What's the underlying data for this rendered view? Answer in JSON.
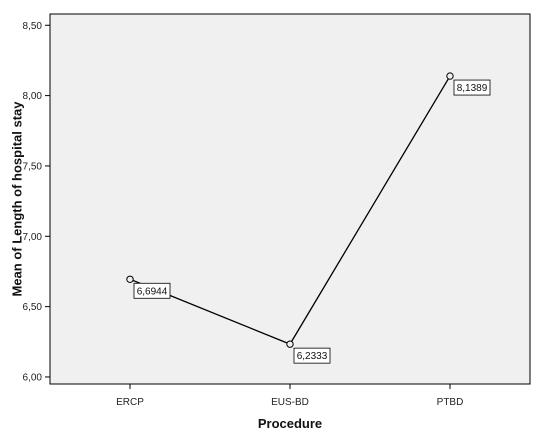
{
  "chart_data": {
    "type": "line",
    "categories": [
      "ERCP",
      "EUS-BD",
      "PTBD"
    ],
    "values": [
      6.6944,
      6.2333,
      8.1389
    ],
    "data_labels": [
      "6,6944",
      "6,2333",
      "8,1389"
    ],
    "xlabel": "Procedure",
    "ylabel": "Mean of Length of  hospital stay",
    "ylim": [
      5.95,
      8.58
    ],
    "yticks": [
      6.0,
      6.5,
      7.0,
      7.5,
      8.0,
      8.5
    ],
    "ytick_labels": [
      "6,00",
      "6,50",
      "7,00",
      "7,50",
      "8,00",
      "8,50"
    ],
    "grid": false,
    "legend": "none",
    "colors": {
      "plot_background": "#f0f0f0",
      "line": "#000000",
      "marker_fill": "#f0f0f0"
    }
  }
}
